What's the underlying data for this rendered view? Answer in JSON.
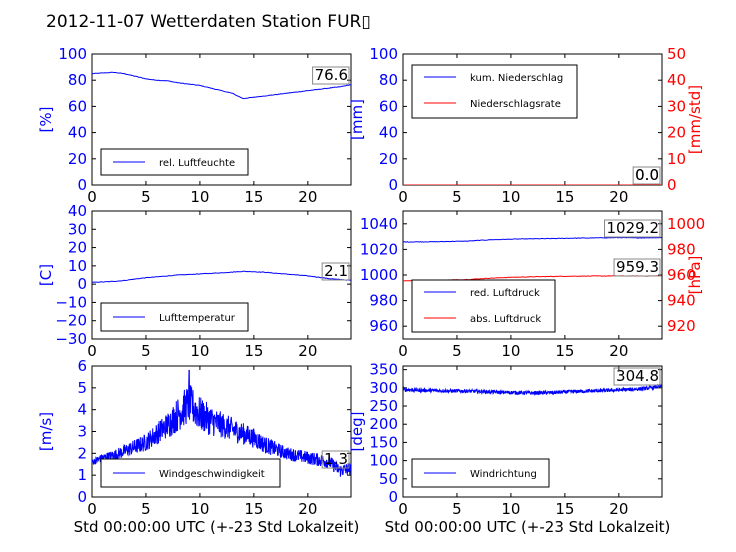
{
  "title": "2012-11-07 Wetterdaten Station FUR▯",
  "colors": {
    "blue": "#0000ff",
    "red": "#ff0000",
    "black": "#000000",
    "legend_border": "#000000"
  },
  "chart_data": [
    {
      "id": "humidity",
      "type": "line",
      "xlabel": "",
      "ylabel": "[%]",
      "xlim": [
        0,
        24
      ],
      "ylim": [
        0,
        100
      ],
      "xticks": [
        0,
        5,
        10,
        15,
        20
      ],
      "yticks": [
        0,
        20,
        40,
        60,
        80,
        100
      ],
      "ytick_color": "blue",
      "series": [
        {
          "name": "rel. Luftfeuchte",
          "color": "blue",
          "x": [
            0,
            1,
            2,
            3,
            4,
            5,
            6,
            7,
            8,
            9,
            10,
            11,
            12,
            13,
            13.5,
            14,
            15,
            16,
            17,
            18,
            19,
            20,
            21,
            22,
            23,
            24
          ],
          "y": [
            85,
            85.5,
            86,
            85,
            83,
            81,
            80,
            79.5,
            78,
            77,
            76,
            74,
            72,
            70,
            68,
            66,
            67,
            68,
            69,
            70,
            71,
            72,
            73,
            74,
            75,
            76.6
          ]
        }
      ],
      "last_value_label": "76.6"
    },
    {
      "id": "precip",
      "type": "line",
      "xlabel": "",
      "ylabel": "[mm]",
      "ylabel2": "[mm/std]",
      "xlim": [
        0,
        24
      ],
      "ylim": [
        0,
        100
      ],
      "ylim2": [
        0,
        50
      ],
      "xticks": [
        0,
        5,
        10,
        15,
        20
      ],
      "yticks": [
        0,
        20,
        40,
        60,
        80,
        100
      ],
      "yticks2": [
        0,
        10,
        20,
        30,
        40,
        50
      ],
      "series": [
        {
          "name": "kum. Niederschlag",
          "color": "blue",
          "axis": "left",
          "x": [
            0,
            24
          ],
          "y": [
            0,
            0
          ]
        },
        {
          "name": "Niederschlagsrate",
          "color": "red",
          "axis": "right",
          "x": [
            0,
            24
          ],
          "y": [
            0,
            0
          ]
        }
      ],
      "last_value_label": "0.0",
      "last_value_label2": "0.0"
    },
    {
      "id": "temp",
      "type": "line",
      "xlabel": "",
      "ylabel": "[C]",
      "xlim": [
        0,
        24
      ],
      "ylim": [
        -30,
        40
      ],
      "xticks": [
        0,
        5,
        10,
        15,
        20
      ],
      "yticks": [
        -30,
        -20,
        -10,
        0,
        10,
        20,
        30,
        40
      ],
      "series": [
        {
          "name": "Lufttemperatur",
          "color": "blue",
          "x": [
            0,
            1,
            2,
            3,
            4,
            5,
            6,
            7,
            8,
            9,
            10,
            11,
            12,
            13,
            14,
            15,
            16,
            17,
            18,
            19,
            20,
            21,
            22,
            23,
            24
          ],
          "y": [
            1.0,
            1.2,
            1.5,
            2.0,
            2.8,
            3.5,
            4.0,
            4.5,
            5.0,
            5.3,
            5.6,
            5.9,
            6.2,
            6.6,
            7.0,
            6.8,
            6.5,
            6.0,
            5.5,
            5.0,
            4.5,
            3.8,
            3.0,
            2.5,
            2.1
          ]
        }
      ],
      "last_value_label": "2.1"
    },
    {
      "id": "pressure",
      "type": "line",
      "xlabel": "",
      "ylabel": "",
      "ylabel2": "[hPa]",
      "xlim": [
        0,
        24
      ],
      "ylim": [
        950,
        1050
      ],
      "ylim2": [
        910,
        1010
      ],
      "xticks": [
        0,
        5,
        10,
        15,
        20
      ],
      "yticks": [
        960,
        980,
        1000,
        1020,
        1040
      ],
      "yticks2": [
        920,
        940,
        960,
        980,
        1000
      ],
      "series": [
        {
          "name": "red. Luftdruck",
          "color": "blue",
          "axis": "left",
          "x": [
            0,
            3,
            6,
            8,
            10,
            12,
            14,
            16,
            18,
            20,
            22,
            24
          ],
          "y": [
            1025.8,
            1026.0,
            1026.5,
            1027.5,
            1028.0,
            1028.3,
            1028.5,
            1028.8,
            1029.0,
            1029.2,
            1029.0,
            1029.2
          ]
        },
        {
          "name": "abs. Luftdruck",
          "color": "red",
          "axis": "right",
          "x": [
            0,
            3,
            6,
            8,
            10,
            12,
            14,
            16,
            18,
            20,
            22,
            24
          ],
          "y": [
            955.5,
            955.8,
            956.5,
            957.5,
            958.2,
            958.6,
            958.9,
            959.1,
            959.2,
            959.3,
            959.2,
            959.3
          ]
        }
      ],
      "last_value_label": "1029.2",
      "last_value_label2": "959.3"
    },
    {
      "id": "wind",
      "type": "line",
      "xlabel": "Std 00:00:00 UTC (+-23 Std Lokalzeit)",
      "ylabel": "[m/s]",
      "xlim": [
        0,
        24
      ],
      "ylim": [
        0,
        6
      ],
      "xticks": [
        0,
        5,
        10,
        15,
        20
      ],
      "yticks": [
        0,
        1,
        2,
        3,
        4,
        5,
        6
      ],
      "series": [
        {
          "name": "Windgeschwindigkeit",
          "color": "blue",
          "x": [
            0,
            1,
            2,
            3,
            4,
            5,
            6,
            7,
            8,
            9,
            10,
            11,
            12,
            13,
            14,
            15,
            16,
            17,
            18,
            19,
            20,
            21,
            22,
            23,
            24
          ],
          "y": [
            1.6,
            1.8,
            1.9,
            2.1,
            2.3,
            2.5,
            2.9,
            3.3,
            3.8,
            4.3,
            3.8,
            3.5,
            3.3,
            3.1,
            2.9,
            2.7,
            2.4,
            2.2,
            2.0,
            1.9,
            1.8,
            1.7,
            1.6,
            1.2,
            1.3
          ]
        }
      ],
      "noise_amplitude": [
        0.15,
        0.2,
        0.25,
        0.3,
        0.35,
        0.4,
        0.5,
        0.6,
        0.8,
        0.9,
        0.8,
        0.7,
        0.6,
        0.55,
        0.5,
        0.45,
        0.4,
        0.35,
        0.3,
        0.3,
        0.3,
        0.3,
        0.3,
        0.3,
        0.3
      ],
      "peak": {
        "x": 9.0,
        "y": 5.8
      },
      "last_value_label": "1.3"
    },
    {
      "id": "direction",
      "type": "line",
      "xlabel": "Std 00:00:00 UTC (+-23 Std Lokalzeit)",
      "ylabel": "[deg]",
      "xlim": [
        0,
        24
      ],
      "ylim": [
        0,
        360
      ],
      "xticks": [
        0,
        5,
        10,
        15,
        20
      ],
      "yticks": [
        0,
        50,
        100,
        150,
        200,
        250,
        300,
        350
      ],
      "series": [
        {
          "name": "Windrichtung",
          "color": "blue",
          "x": [
            0,
            2,
            4,
            6,
            8,
            10,
            12,
            14,
            16,
            18,
            20,
            22,
            23,
            24
          ],
          "y": [
            295,
            293,
            292,
            291,
            289,
            287,
            286,
            287,
            290,
            292,
            294,
            297,
            300,
            304.8
          ]
        }
      ],
      "noise_amplitude": [
        5
      ],
      "last_value_label": "304.8"
    }
  ]
}
